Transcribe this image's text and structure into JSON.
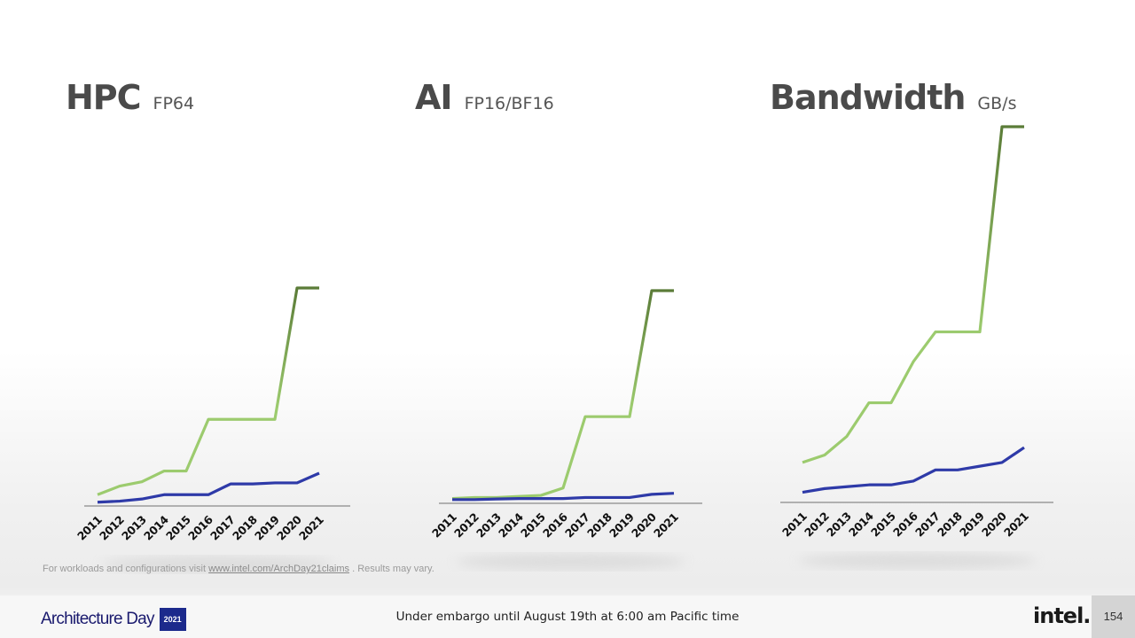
{
  "charts": [
    {
      "key": "hpc",
      "title": "HPC",
      "unit": "FP64"
    },
    {
      "key": "ai",
      "title": "AI",
      "unit": "FP16/BF16"
    },
    {
      "key": "bw",
      "title": "Bandwidth",
      "unit": "GB/s"
    }
  ],
  "chart_data": [
    {
      "type": "line",
      "title": "HPC FP64",
      "categories": [
        "2011",
        "2012",
        "2013",
        "2014",
        "2015",
        "2016",
        "2017",
        "2018",
        "2019",
        "2020",
        "2021"
      ],
      "ylim": [
        0,
        100
      ],
      "series": [
        {
          "color": "#9ccb6e",
          "values": [
            4,
            8,
            10,
            15,
            15,
            39,
            39,
            39,
            39,
            100,
            100
          ]
        },
        {
          "color": "#2e3aa8",
          "values": [
            0.5,
            1,
            2,
            4,
            4,
            4,
            9,
            9,
            9.5,
            9.5,
            14
          ]
        }
      ]
    },
    {
      "type": "line",
      "title": "AI FP16/BF16",
      "categories": [
        "2011",
        "2012",
        "2013",
        "2014",
        "2015",
        "2016",
        "2017",
        "2018",
        "2019",
        "2020",
        "2021"
      ],
      "ylim": [
        0,
        100
      ],
      "series": [
        {
          "color": "#9ccb6e",
          "values": [
            1,
            1.5,
            1.5,
            2,
            2.5,
            6,
            40,
            40,
            40,
            100,
            100
          ]
        },
        {
          "color": "#2e3aa8",
          "values": [
            0.5,
            0.5,
            0.8,
            1,
            1,
            1,
            1.5,
            1.5,
            1.5,
            3,
            3.5
          ]
        }
      ]
    },
    {
      "type": "line",
      "title": "Bandwidth GB/s",
      "categories": [
        "2011",
        "2012",
        "2013",
        "2014",
        "2015",
        "2016",
        "2017",
        "2018",
        "2019",
        "2020",
        "2021"
      ],
      "ylim": [
        0,
        100
      ],
      "series": [
        {
          "color": "#9ccb6e",
          "values": [
            10,
            12,
            17,
            26,
            26,
            37,
            45,
            45,
            45,
            100,
            100
          ]
        },
        {
          "color": "#2e3aa8",
          "values": [
            2,
            3,
            3.5,
            4,
            4,
            5,
            8,
            8,
            9,
            10,
            14
          ]
        }
      ]
    }
  ],
  "footnote": {
    "prefix": "For workloads and configurations visit ",
    "link": "www.intel.com/ArchDay21claims",
    "suffix": " . Results may vary."
  },
  "footer": {
    "brand": "Architecture Day",
    "brand_year": "2021",
    "embargo": "Under embargo until August 19th at 6:00 am Pacific time",
    "logo": "intel.",
    "page_number": "154"
  },
  "colors": {
    "green": "#9ccb6e",
    "green_dark": "#5b7c38",
    "blue": "#2e3aa8"
  }
}
